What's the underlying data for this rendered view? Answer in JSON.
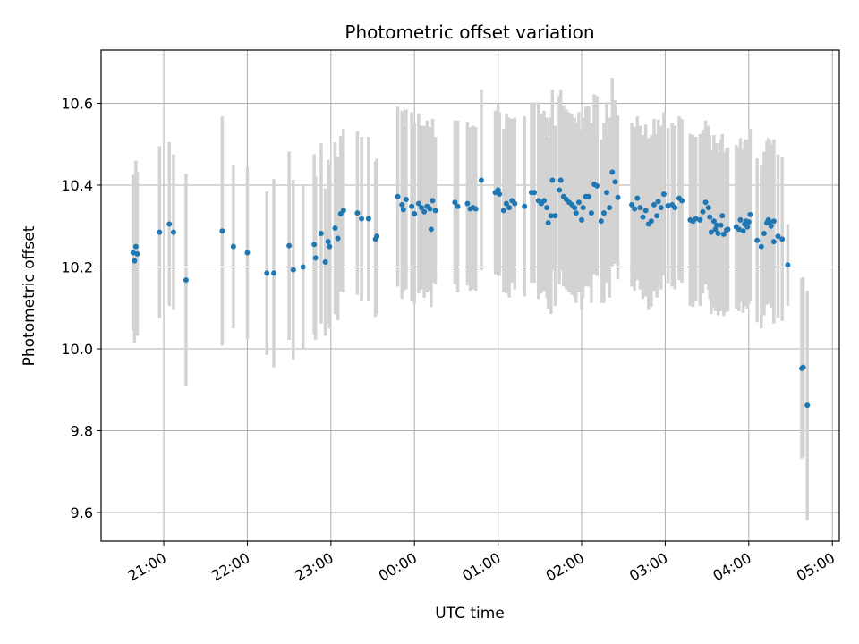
{
  "chart_data": {
    "type": "scatter",
    "title": "Photometric offset variation",
    "xlabel": "UTC time",
    "ylabel": "Photometric offset",
    "xlim": [
      "20:15",
      "05:05"
    ],
    "ylim": [
      9.53,
      10.73
    ],
    "x_ticks": [
      "21:00",
      "22:00",
      "23:00",
      "00:00",
      "01:00",
      "02:00",
      "03:00",
      "04:00",
      "05:00"
    ],
    "y_ticks": [
      9.6,
      9.8,
      10.0,
      10.2,
      10.4,
      10.6
    ],
    "grid": true,
    "colors": {
      "points": "#1f77b4",
      "errorbars": "#d3d3d3",
      "grid": "#b0b0b0"
    },
    "series": [
      {
        "points": [
          {
            "x": "20:38",
            "y": 10.235,
            "err": 0.19
          },
          {
            "x": "20:39",
            "y": 10.215,
            "err": 0.2
          },
          {
            "x": "20:40",
            "y": 10.25,
            "err": 0.21
          },
          {
            "x": "20:41",
            "y": 10.232,
            "err": 0.2
          },
          {
            "x": "20:57",
            "y": 10.285,
            "err": 0.21
          },
          {
            "x": "21:04",
            "y": 10.305,
            "err": 0.2
          },
          {
            "x": "21:07",
            "y": 10.285,
            "err": 0.19
          },
          {
            "x": "21:16",
            "y": 10.168,
            "err": 0.26
          },
          {
            "x": "21:42",
            "y": 10.288,
            "err": 0.28
          },
          {
            "x": "21:50",
            "y": 10.25,
            "err": 0.2
          },
          {
            "x": "22:00",
            "y": 10.235,
            "err": 0.21
          },
          {
            "x": "22:14",
            "y": 10.185,
            "err": 0.2
          },
          {
            "x": "22:19",
            "y": 10.185,
            "err": 0.23
          },
          {
            "x": "22:30",
            "y": 10.252,
            "err": 0.23
          },
          {
            "x": "22:33",
            "y": 10.193,
            "err": 0.22
          },
          {
            "x": "22:40",
            "y": 10.2,
            "err": 0.2
          },
          {
            "x": "22:48",
            "y": 10.255,
            "err": 0.22
          },
          {
            "x": "22:49",
            "y": 10.222,
            "err": 0.2
          },
          {
            "x": "22:53",
            "y": 10.282,
            "err": 0.22
          },
          {
            "x": "22:56",
            "y": 10.212,
            "err": 0.18
          },
          {
            "x": "22:58",
            "y": 10.262,
            "err": 0.2
          },
          {
            "x": "22:59",
            "y": 10.25,
            "err": 0.2
          },
          {
            "x": "23:03",
            "y": 10.295,
            "err": 0.21
          },
          {
            "x": "23:05",
            "y": 10.27,
            "err": 0.2
          },
          {
            "x": "23:07",
            "y": 10.33,
            "err": 0.19
          },
          {
            "x": "23:09",
            "y": 10.338,
            "err": 0.2
          },
          {
            "x": "23:19",
            "y": 10.332,
            "err": 0.2
          },
          {
            "x": "23:22",
            "y": 10.318,
            "err": 0.2
          },
          {
            "x": "23:27",
            "y": 10.318,
            "err": 0.2
          },
          {
            "x": "23:32",
            "y": 10.268,
            "err": 0.19
          },
          {
            "x": "23:33",
            "y": 10.275,
            "err": 0.19
          },
          {
            "x": "23:48",
            "y": 10.372,
            "err": 0.22
          },
          {
            "x": "23:51",
            "y": 10.352,
            "err": 0.23
          },
          {
            "x": "23:52",
            "y": 10.34,
            "err": 0.2
          },
          {
            "x": "23:54",
            "y": 10.365,
            "err": 0.22
          },
          {
            "x": "23:58",
            "y": 10.348,
            "err": 0.23
          },
          {
            "x": "00:00",
            "y": 10.33,
            "err": 0.22
          },
          {
            "x": "00:03",
            "y": 10.355,
            "err": 0.22
          },
          {
            "x": "00:05",
            "y": 10.345,
            "err": 0.2
          },
          {
            "x": "00:07",
            "y": 10.335,
            "err": 0.21
          },
          {
            "x": "00:09",
            "y": 10.348,
            "err": 0.21
          },
          {
            "x": "00:11",
            "y": 10.342,
            "err": 0.2
          },
          {
            "x": "00:12",
            "y": 10.292,
            "err": 0.19
          },
          {
            "x": "00:13",
            "y": 10.362,
            "err": 0.2
          },
          {
            "x": "00:15",
            "y": 10.338,
            "err": 0.18
          },
          {
            "x": "00:29",
            "y": 10.358,
            "err": 0.2
          },
          {
            "x": "00:31",
            "y": 10.348,
            "err": 0.21
          },
          {
            "x": "00:38",
            "y": 10.355,
            "err": 0.2
          },
          {
            "x": "00:40",
            "y": 10.342,
            "err": 0.2
          },
          {
            "x": "00:42",
            "y": 10.345,
            "err": 0.2
          },
          {
            "x": "00:44",
            "y": 10.342,
            "err": 0.2
          },
          {
            "x": "00:48",
            "y": 10.412,
            "err": 0.22
          },
          {
            "x": "00:58",
            "y": 10.382,
            "err": 0.2
          },
          {
            "x": "01:00",
            "y": 10.388,
            "err": 0.21
          },
          {
            "x": "01:01",
            "y": 10.378,
            "err": 0.2
          },
          {
            "x": "01:04",
            "y": 10.338,
            "err": 0.2
          },
          {
            "x": "01:06",
            "y": 10.355,
            "err": 0.22
          },
          {
            "x": "01:08",
            "y": 10.345,
            "err": 0.22
          },
          {
            "x": "01:10",
            "y": 10.362,
            "err": 0.2
          },
          {
            "x": "01:12",
            "y": 10.355,
            "err": 0.21
          },
          {
            "x": "01:19",
            "y": 10.348,
            "err": 0.22
          },
          {
            "x": "01:24",
            "y": 10.382,
            "err": 0.22
          },
          {
            "x": "01:26",
            "y": 10.382,
            "err": 0.22
          },
          {
            "x": "01:29",
            "y": 10.362,
            "err": 0.24
          },
          {
            "x": "01:31",
            "y": 10.355,
            "err": 0.22
          },
          {
            "x": "01:33",
            "y": 10.362,
            "err": 0.22
          },
          {
            "x": "01:35",
            "y": 10.345,
            "err": 0.22
          },
          {
            "x": "01:36",
            "y": 10.308,
            "err": 0.21
          },
          {
            "x": "01:38",
            "y": 10.325,
            "err": 0.24
          },
          {
            "x": "01:39",
            "y": 10.412,
            "err": 0.22
          },
          {
            "x": "01:41",
            "y": 10.325,
            "err": 0.22
          },
          {
            "x": "01:44",
            "y": 10.388,
            "err": 0.23
          },
          {
            "x": "01:45",
            "y": 10.412,
            "err": 0.22
          },
          {
            "x": "01:47",
            "y": 10.372,
            "err": 0.22
          },
          {
            "x": "01:49",
            "y": 10.365,
            "err": 0.22
          },
          {
            "x": "01:51",
            "y": 10.358,
            "err": 0.22
          },
          {
            "x": "01:53",
            "y": 10.352,
            "err": 0.22
          },
          {
            "x": "01:55",
            "y": 10.345,
            "err": 0.22
          },
          {
            "x": "01:56",
            "y": 10.332,
            "err": 0.22
          },
          {
            "x": "01:58",
            "y": 10.358,
            "err": 0.22
          },
          {
            "x": "02:00",
            "y": 10.315,
            "err": 0.22
          },
          {
            "x": "02:01",
            "y": 10.345,
            "err": 0.22
          },
          {
            "x": "02:03",
            "y": 10.372,
            "err": 0.22
          },
          {
            "x": "02:05",
            "y": 10.372,
            "err": 0.22
          },
          {
            "x": "02:07",
            "y": 10.332,
            "err": 0.22
          },
          {
            "x": "02:09",
            "y": 10.402,
            "err": 0.22
          },
          {
            "x": "02:11",
            "y": 10.398,
            "err": 0.22
          },
          {
            "x": "02:14",
            "y": 10.312,
            "err": 0.2
          },
          {
            "x": "02:16",
            "y": 10.332,
            "err": 0.22
          },
          {
            "x": "02:18",
            "y": 10.382,
            "err": 0.22
          },
          {
            "x": "02:20",
            "y": 10.345,
            "err": 0.22
          },
          {
            "x": "02:22",
            "y": 10.432,
            "err": 0.23
          },
          {
            "x": "02:24",
            "y": 10.408,
            "err": 0.2
          },
          {
            "x": "02:26",
            "y": 10.37,
            "err": 0.2
          },
          {
            "x": "02:36",
            "y": 10.352,
            "err": 0.2
          },
          {
            "x": "02:38",
            "y": 10.342,
            "err": 0.2
          },
          {
            "x": "02:40",
            "y": 10.368,
            "err": 0.2
          },
          {
            "x": "02:42",
            "y": 10.345,
            "err": 0.2
          },
          {
            "x": "02:44",
            "y": 10.322,
            "err": 0.2
          },
          {
            "x": "02:46",
            "y": 10.338,
            "err": 0.21
          },
          {
            "x": "02:48",
            "y": 10.305,
            "err": 0.21
          },
          {
            "x": "02:50",
            "y": 10.312,
            "err": 0.21
          },
          {
            "x": "02:52",
            "y": 10.352,
            "err": 0.21
          },
          {
            "x": "02:54",
            "y": 10.325,
            "err": 0.2
          },
          {
            "x": "02:55",
            "y": 10.36,
            "err": 0.2
          },
          {
            "x": "02:57",
            "y": 10.345,
            "err": 0.2
          },
          {
            "x": "02:59",
            "y": 10.378,
            "err": 0.2
          },
          {
            "x": "03:02",
            "y": 10.35,
            "err": 0.19
          },
          {
            "x": "03:05",
            "y": 10.352,
            "err": 0.2
          },
          {
            "x": "03:07",
            "y": 10.345,
            "err": 0.2
          },
          {
            "x": "03:10",
            "y": 10.368,
            "err": 0.2
          },
          {
            "x": "03:12",
            "y": 10.362,
            "err": 0.2
          },
          {
            "x": "03:18",
            "y": 10.315,
            "err": 0.21
          },
          {
            "x": "03:20",
            "y": 10.312,
            "err": 0.21
          },
          {
            "x": "03:22",
            "y": 10.318,
            "err": 0.2
          },
          {
            "x": "03:25",
            "y": 10.315,
            "err": 0.21
          },
          {
            "x": "03:27",
            "y": 10.335,
            "err": 0.2
          },
          {
            "x": "03:29",
            "y": 10.358,
            "err": 0.2
          },
          {
            "x": "03:31",
            "y": 10.345,
            "err": 0.2
          },
          {
            "x": "03:32",
            "y": 10.322,
            "err": 0.2
          },
          {
            "x": "03:33",
            "y": 10.285,
            "err": 0.2
          },
          {
            "x": "03:35",
            "y": 10.312,
            "err": 0.21
          },
          {
            "x": "03:36",
            "y": 10.292,
            "err": 0.2
          },
          {
            "x": "03:37",
            "y": 10.302,
            "err": 0.2
          },
          {
            "x": "03:38",
            "y": 10.282,
            "err": 0.2
          },
          {
            "x": "03:40",
            "y": 10.302,
            "err": 0.21
          },
          {
            "x": "03:41",
            "y": 10.325,
            "err": 0.2
          },
          {
            "x": "03:42",
            "y": 10.28,
            "err": 0.2
          },
          {
            "x": "03:44",
            "y": 10.29,
            "err": 0.2
          },
          {
            "x": "03:45",
            "y": 10.292,
            "err": 0.2
          },
          {
            "x": "03:51",
            "y": 10.298,
            "err": 0.2
          },
          {
            "x": "03:53",
            "y": 10.292,
            "err": 0.2
          },
          {
            "x": "03:54",
            "y": 10.315,
            "err": 0.2
          },
          {
            "x": "03:56",
            "y": 10.288,
            "err": 0.2
          },
          {
            "x": "03:57",
            "y": 10.305,
            "err": 0.2
          },
          {
            "x": "03:58",
            "y": 10.312,
            "err": 0.2
          },
          {
            "x": "03:59",
            "y": 10.298,
            "err": 0.2
          },
          {
            "x": "04:00",
            "y": 10.31,
            "err": 0.2
          },
          {
            "x": "04:01",
            "y": 10.328,
            "err": 0.21
          },
          {
            "x": "04:06",
            "y": 10.265,
            "err": 0.2
          },
          {
            "x": "04:09",
            "y": 10.25,
            "err": 0.2
          },
          {
            "x": "04:11",
            "y": 10.282,
            "err": 0.2
          },
          {
            "x": "04:13",
            "y": 10.308,
            "err": 0.2
          },
          {
            "x": "04:14",
            "y": 10.315,
            "err": 0.2
          },
          {
            "x": "04:15",
            "y": 10.31,
            "err": 0.2
          },
          {
            "x": "04:16",
            "y": 10.3,
            "err": 0.2
          },
          {
            "x": "04:18",
            "y": 10.312,
            "err": 0.2
          },
          {
            "x": "04:18",
            "y": 10.262,
            "err": 0.2
          },
          {
            "x": "04:21",
            "y": 10.275,
            "err": 0.2
          },
          {
            "x": "04:24",
            "y": 10.268,
            "err": 0.2
          },
          {
            "x": "04:28",
            "y": 10.205,
            "err": 0.1
          },
          {
            "x": "04:38",
            "y": 9.952,
            "err": 0.22
          },
          {
            "x": "04:39",
            "y": 9.955,
            "err": 0.22
          },
          {
            "x": "04:42",
            "y": 9.862,
            "err": 0.28
          }
        ]
      }
    ]
  }
}
